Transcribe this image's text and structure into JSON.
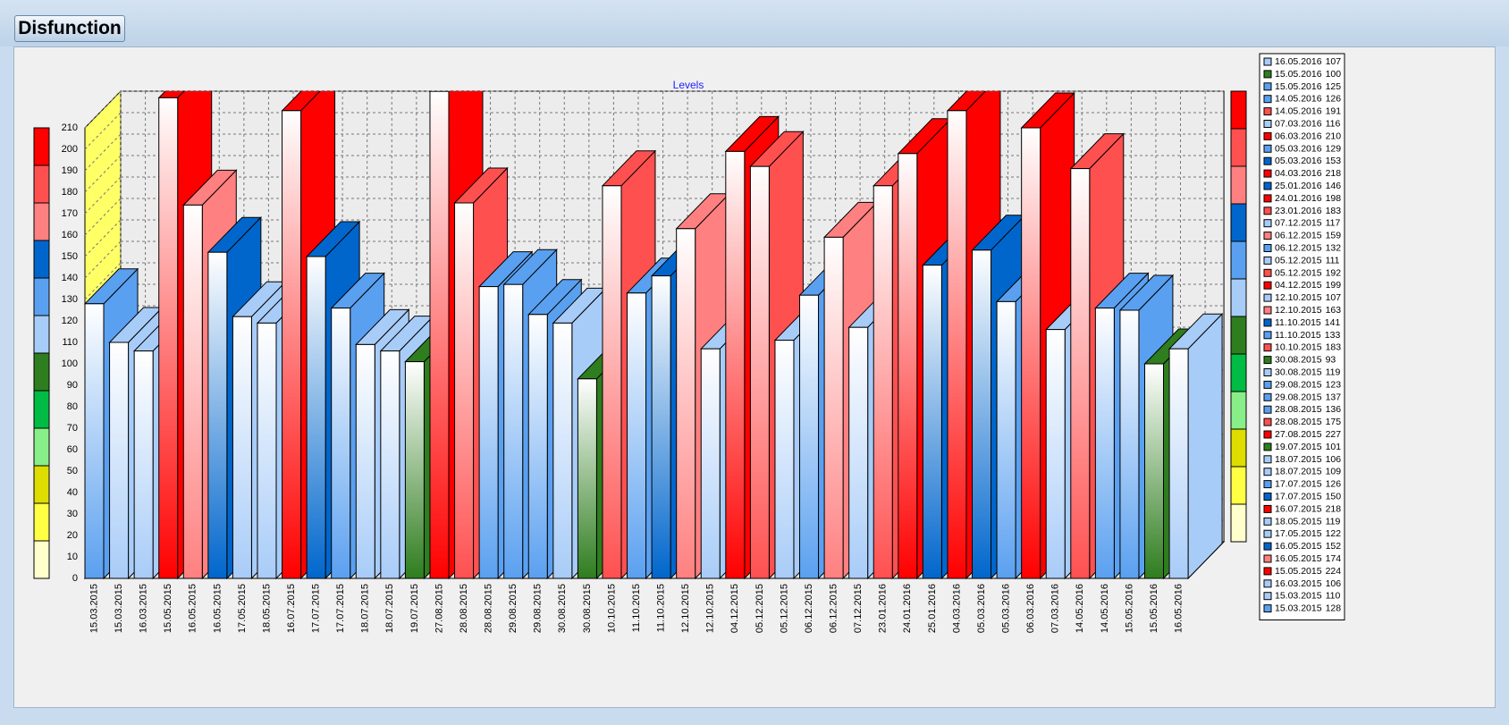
{
  "window_title": "Disfunction",
  "chart_data": {
    "type": "bar3d",
    "title": "Levels",
    "categories": [
      "15.03.2015",
      "15.03.2015",
      "16.03.2015",
      "15.05.2015",
      "16.05.2015",
      "16.05.2015",
      "17.05.2015",
      "18.05.2015",
      "16.07.2015",
      "17.07.2015",
      "17.07.2015",
      "18.07.2015",
      "18.07.2015",
      "19.07.2015",
      "27.08.2015",
      "28.08.2015",
      "28.08.2015",
      "29.08.2015",
      "29.08.2015",
      "30.08.2015",
      "30.08.2015",
      "10.10.2015",
      "11.10.2015",
      "11.10.2015",
      "12.10.2015",
      "12.10.2015",
      "04.12.2015",
      "05.12.2015",
      "05.12.2015",
      "06.12.2015",
      "06.12.2015",
      "07.12.2015",
      "23.01.2016",
      "24.01.2016",
      "25.01.2016",
      "04.03.2016",
      "05.03.2016",
      "05.03.2016",
      "06.03.2016",
      "07.03.2016",
      "14.05.2016",
      "14.05.2016",
      "15.05.2016",
      "15.05.2016",
      "16.05.2016"
    ],
    "values": [
      128,
      110,
      106,
      224,
      174,
      152,
      122,
      119,
      218,
      150,
      126,
      109,
      106,
      101,
      227,
      175,
      136,
      137,
      123,
      119,
      93,
      183,
      133,
      141,
      163,
      107,
      199,
      192,
      111,
      132,
      159,
      117,
      183,
      198,
      146,
      218,
      153,
      129,
      210,
      116,
      191,
      126,
      125,
      100,
      107
    ],
    "ylim": [
      0,
      210
    ],
    "yticks": [
      0,
      10,
      20,
      30,
      40,
      50,
      60,
      70,
      80,
      90,
      100,
      110,
      120,
      130,
      140,
      150,
      160,
      170,
      180,
      190,
      200,
      210
    ],
    "grid": true,
    "level_colors": [
      "#ffffcc",
      "#ffff44",
      "#dddd00",
      "#88ee88",
      "#00bb44",
      "#2e7d1e",
      "#a8ccf8",
      "#5aa0f0",
      "#0066cc",
      "#ff8080",
      "#ff5050",
      "#ff0000"
    ],
    "legend": "right"
  }
}
